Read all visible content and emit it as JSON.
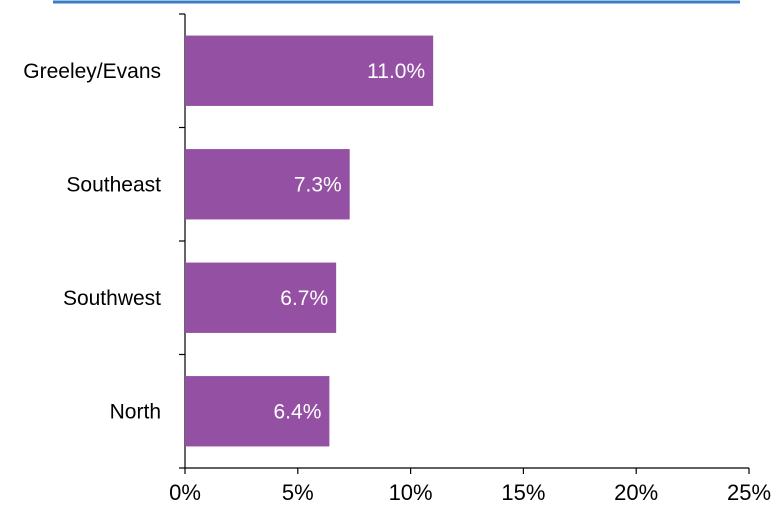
{
  "chart_data": {
    "type": "bar",
    "orientation": "horizontal",
    "title": "",
    "xlabel": "",
    "ylabel": "",
    "categories": [
      "Greeley/Evans",
      "Southeast",
      "Southwest",
      "North"
    ],
    "values": [
      11.0,
      7.3,
      6.7,
      6.4
    ],
    "data_labels": [
      "11.0%",
      "7.3%",
      "6.7%",
      "6.4%"
    ],
    "xlim": [
      0,
      25
    ],
    "x_ticks": [
      0,
      5,
      10,
      15,
      20,
      25
    ],
    "x_tick_labels": [
      "0%",
      "5%",
      "10%",
      "15%",
      "20%",
      "25%"
    ],
    "grid": false,
    "legend": "none",
    "bar_color": "#9450A3",
    "accent_line_color": "#3A7CC4"
  }
}
